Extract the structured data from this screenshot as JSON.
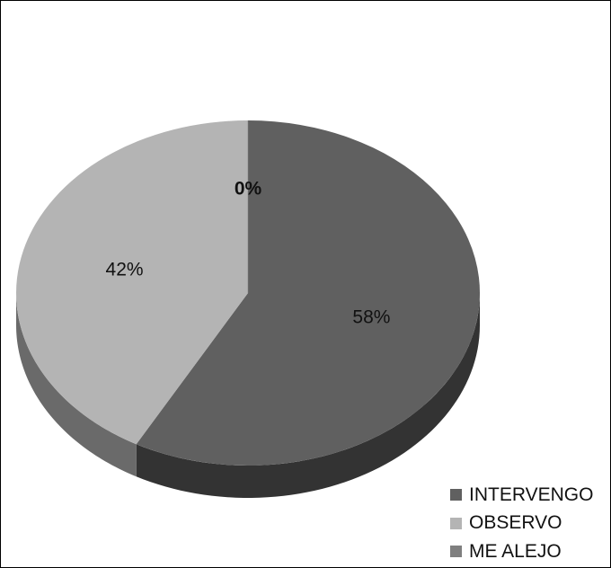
{
  "chart_data": {
    "type": "pie",
    "style": "3d",
    "categories": [
      "INTERVENGO",
      "OBSERVO",
      "ME ALEJO"
    ],
    "values": [
      58,
      42,
      0
    ],
    "data_labels": [
      "58%",
      "42%",
      "0%"
    ],
    "colors": [
      "#606060",
      "#b4b4b4",
      "#7f7f7f"
    ],
    "side_colors": [
      "#333333",
      "#6a6a6a",
      "#4a4a4a"
    ],
    "legend_position": "bottom-right",
    "title": ""
  }
}
